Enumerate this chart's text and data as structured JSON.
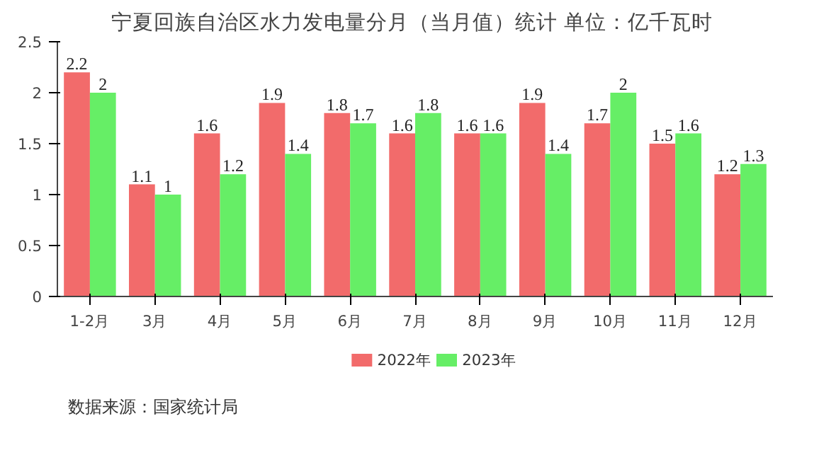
{
  "chart_data": {
    "type": "bar",
    "title": "宁夏回族自治区水力发电量分月（当月值）统计  单位：亿千瓦时",
    "categories": [
      "1-2月",
      "3月",
      "4月",
      "5月",
      "6月",
      "7月",
      "8月",
      "9月",
      "10月",
      "11月",
      "12月"
    ],
    "series": [
      {
        "name": "2022年",
        "color": "#f26b6b",
        "values": [
          2.2,
          1.1,
          1.6,
          1.9,
          1.8,
          1.6,
          1.6,
          1.9,
          1.7,
          1.5,
          1.2
        ]
      },
      {
        "name": "2023年",
        "color": "#66ee66",
        "values": [
          2,
          1,
          1.2,
          1.4,
          1.7,
          1.8,
          1.6,
          1.4,
          2,
          1.6,
          1.3
        ]
      }
    ],
    "ylim": [
      0,
      2.5
    ],
    "yticks": [
      0,
      0.5,
      1,
      1.5,
      2,
      2.5
    ],
    "grid": false,
    "legend": "bottom",
    "data_labels": true,
    "annotations": [
      "数据来源：国家统计局"
    ]
  }
}
